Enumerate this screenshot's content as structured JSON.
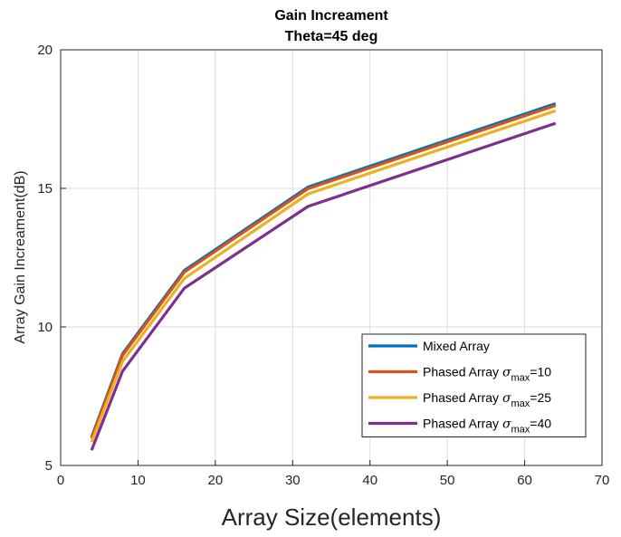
{
  "chart_data": {
    "type": "line",
    "title": "Gain Increament",
    "subtitle": "Theta=45 deg",
    "xlabel": "Array Size(elements)",
    "ylabel": "Array Gain Increament(dB)",
    "xlim": [
      0,
      70
    ],
    "ylim": [
      5,
      20
    ],
    "xticks": [
      0,
      10,
      20,
      30,
      40,
      50,
      60,
      70
    ],
    "yticks": [
      5,
      10,
      15,
      20
    ],
    "grid": true,
    "legend_position": "bottom-right",
    "x": [
      4,
      8,
      16,
      32,
      64
    ],
    "series": [
      {
        "name": "Mixed Array",
        "legend_prefix": "Mixed Array",
        "legend_sub": "",
        "legend_suffix": "",
        "color": "#0072BD",
        "values": [
          6.02,
          9.03,
          12.04,
          15.05,
          18.06
        ]
      },
      {
        "name": "Phased Array σmax=10",
        "legend_prefix": "Phased Array σ",
        "legend_sub": "max",
        "legend_suffix": "=10",
        "color": "#D95319",
        "values": [
          5.97,
          8.97,
          11.98,
          14.99,
          17.99
        ]
      },
      {
        "name": "Phased Array σmax=25",
        "legend_prefix": "Phased Array σ",
        "legend_sub": "max",
        "legend_suffix": "=25",
        "color": "#EDB120",
        "values": [
          5.85,
          8.75,
          11.75,
          14.8,
          17.8
        ]
      },
      {
        "name": "Phased Array σmax=40",
        "legend_prefix": "Phased Array σ",
        "legend_sub": "max",
        "legend_suffix": "=40",
        "color": "#7E2F8E",
        "values": [
          5.55,
          8.4,
          11.4,
          14.35,
          17.35
        ]
      }
    ]
  }
}
